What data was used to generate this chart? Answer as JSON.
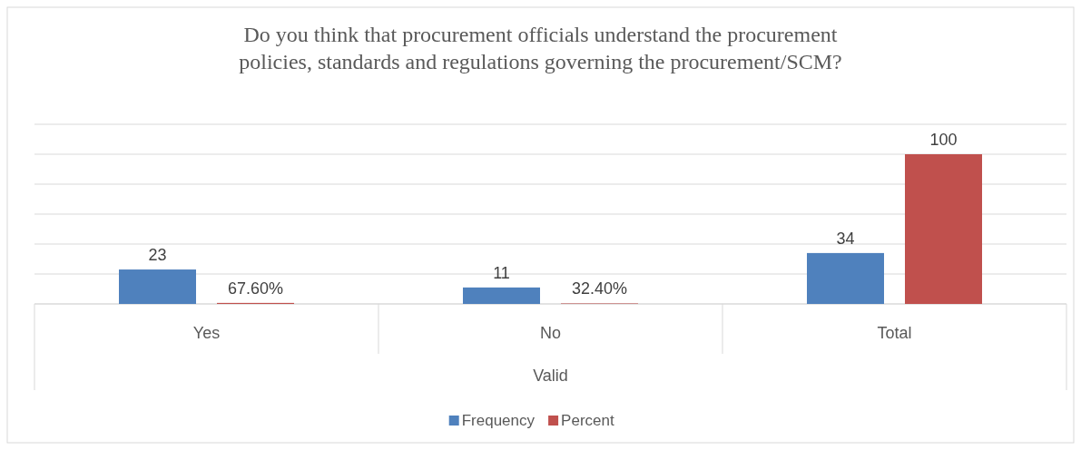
{
  "chart_data": {
    "type": "bar",
    "title": "Do you think that procurement officials understand the procurement policies, standards and regulations governing the procurement/SCM?",
    "xlabel": "Valid",
    "categories": [
      "Yes",
      "No",
      "Total"
    ],
    "series": [
      {
        "name": "Frequency",
        "color": "#4f81bd",
        "values": [
          23,
          11,
          34
        ],
        "value_labels": [
          "23",
          "11",
          "34"
        ]
      },
      {
        "name": "Percent",
        "color": "#c0504d",
        "values": [
          0.676,
          0.324,
          100
        ],
        "value_labels": [
          "67.60%",
          "32.40%",
          "100"
        ]
      }
    ],
    "ylim": [
      0,
      120
    ],
    "yticks": [
      {
        "value": 0,
        "label": null
      },
      {
        "value": 20,
        "label": null
      },
      {
        "value": 40,
        "label": null
      },
      {
        "value": 60,
        "label": null
      },
      {
        "value": 80,
        "label": null
      },
      {
        "value": 100,
        "label": null
      },
      {
        "value": 120,
        "label": null
      }
    ],
    "tick_labels": "x",
    "grid": "y",
    "legend": "bottom"
  }
}
